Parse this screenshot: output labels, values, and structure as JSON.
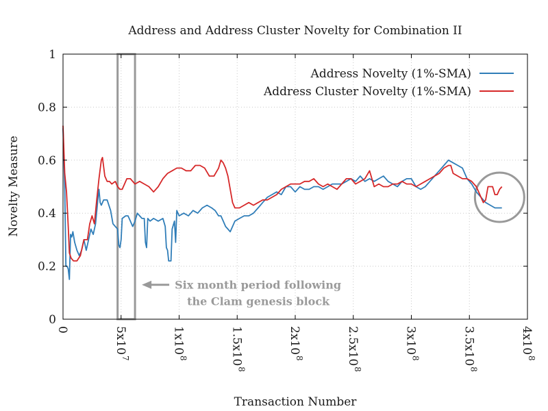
{
  "chart_data": {
    "type": "line",
    "title": "Address and Address Cluster Novelty for Combination II",
    "xlabel": "Transaction Number",
    "ylabel": "Novelty Measure",
    "xlim": [
      0,
      400000000
    ],
    "ylim": [
      0,
      1
    ],
    "x_ticks": [
      {
        "value": 0,
        "label": "0",
        "sup": ""
      },
      {
        "value": 50000000,
        "label": "5x10",
        "sup": "7"
      },
      {
        "value": 100000000,
        "label": "1x10",
        "sup": "8"
      },
      {
        "value": 150000000,
        "label": "1.5x10",
        "sup": "8"
      },
      {
        "value": 200000000,
        "label": "2x10",
        "sup": "8"
      },
      {
        "value": 250000000,
        "label": "2.5x10",
        "sup": "8"
      },
      {
        "value": 300000000,
        "label": "3x10",
        "sup": "8"
      },
      {
        "value": 350000000,
        "label": "3.5x10",
        "sup": "8"
      },
      {
        "value": 400000000,
        "label": "4x10",
        "sup": "8"
      }
    ],
    "y_ticks": [
      {
        "value": 0,
        "label": "0"
      },
      {
        "value": 0.2,
        "label": "0.2"
      },
      {
        "value": 0.4,
        "label": "0.4"
      },
      {
        "value": 0.6,
        "label": "0.6"
      },
      {
        "value": 0.8,
        "label": "0.8"
      },
      {
        "value": 1,
        "label": "1"
      }
    ],
    "grid": true,
    "legend_position": "top-right",
    "series": [
      {
        "name": "Address Novelty (1%-SMA)",
        "color": "#2f7db8",
        "points": [
          [
            0,
            0.72
          ],
          [
            1500000,
            0.5
          ],
          [
            2500000,
            0.2
          ],
          [
            3500000,
            0.2
          ],
          [
            4500000,
            0.19
          ],
          [
            5500000,
            0.15
          ],
          [
            6500000,
            0.32
          ],
          [
            7500000,
            0.31
          ],
          [
            8500000,
            0.33
          ],
          [
            10000000,
            0.29
          ],
          [
            12000000,
            0.26
          ],
          [
            14000000,
            0.24
          ],
          [
            16000000,
            0.26
          ],
          [
            18000000,
            0.3
          ],
          [
            20000000,
            0.26
          ],
          [
            22000000,
            0.3
          ],
          [
            24000000,
            0.34
          ],
          [
            26000000,
            0.32
          ],
          [
            28000000,
            0.36
          ],
          [
            30000000,
            0.45
          ],
          [
            31000000,
            0.49
          ],
          [
            32000000,
            0.44
          ],
          [
            33000000,
            0.43
          ],
          [
            35000000,
            0.45
          ],
          [
            38000000,
            0.45
          ],
          [
            41000000,
            0.41
          ],
          [
            43000000,
            0.36
          ],
          [
            45000000,
            0.35
          ],
          [
            47000000,
            0.34
          ],
          [
            48000000,
            0.28
          ],
          [
            49000000,
            0.27
          ],
          [
            50000000,
            0.3
          ],
          [
            51000000,
            0.38
          ],
          [
            54000000,
            0.39
          ],
          [
            56000000,
            0.39
          ],
          [
            58000000,
            0.37
          ],
          [
            60000000,
            0.35
          ],
          [
            62000000,
            0.37
          ],
          [
            64000000,
            0.4
          ],
          [
            66000000,
            0.39
          ],
          [
            68000000,
            0.38
          ],
          [
            70000000,
            0.38
          ],
          [
            71000000,
            0.29
          ],
          [
            72000000,
            0.27
          ],
          [
            73000000,
            0.38
          ],
          [
            75000000,
            0.37
          ],
          [
            78000000,
            0.38
          ],
          [
            82000000,
            0.37
          ],
          [
            86000000,
            0.38
          ],
          [
            88000000,
            0.35
          ],
          [
            89000000,
            0.27
          ],
          [
            90000000,
            0.26
          ],
          [
            91000000,
            0.22
          ],
          [
            93000000,
            0.22
          ],
          [
            94000000,
            0.34
          ],
          [
            96000000,
            0.37
          ],
          [
            97000000,
            0.29
          ],
          [
            98000000,
            0.41
          ],
          [
            100000000,
            0.39
          ],
          [
            104000000,
            0.4
          ],
          [
            108000000,
            0.39
          ],
          [
            112000000,
            0.41
          ],
          [
            116000000,
            0.4
          ],
          [
            120000000,
            0.42
          ],
          [
            124000000,
            0.43
          ],
          [
            128000000,
            0.42
          ],
          [
            131000000,
            0.41
          ],
          [
            134000000,
            0.39
          ],
          [
            136000000,
            0.39
          ],
          [
            138000000,
            0.37
          ],
          [
            140000000,
            0.35
          ],
          [
            142000000,
            0.34
          ],
          [
            144000000,
            0.33
          ],
          [
            146000000,
            0.35
          ],
          [
            148000000,
            0.37
          ],
          [
            152000000,
            0.38
          ],
          [
            156000000,
            0.39
          ],
          [
            160000000,
            0.39
          ],
          [
            164000000,
            0.4
          ],
          [
            168000000,
            0.42
          ],
          [
            172000000,
            0.44
          ],
          [
            176000000,
            0.46
          ],
          [
            180000000,
            0.47
          ],
          [
            184000000,
            0.48
          ],
          [
            188000000,
            0.47
          ],
          [
            192000000,
            0.5
          ],
          [
            196000000,
            0.5
          ],
          [
            200000000,
            0.48
          ],
          [
            204000000,
            0.5
          ],
          [
            208000000,
            0.49
          ],
          [
            212000000,
            0.49
          ],
          [
            216000000,
            0.5
          ],
          [
            220000000,
            0.5
          ],
          [
            224000000,
            0.49
          ],
          [
            228000000,
            0.5
          ],
          [
            232000000,
            0.51
          ],
          [
            236000000,
            0.51
          ],
          [
            240000000,
            0.51
          ],
          [
            244000000,
            0.52
          ],
          [
            248000000,
            0.53
          ],
          [
            252000000,
            0.52
          ],
          [
            256000000,
            0.54
          ],
          [
            260000000,
            0.52
          ],
          [
            264000000,
            0.53
          ],
          [
            268000000,
            0.52
          ],
          [
            272000000,
            0.53
          ],
          [
            276000000,
            0.54
          ],
          [
            280000000,
            0.52
          ],
          [
            284000000,
            0.51
          ],
          [
            288000000,
            0.5
          ],
          [
            292000000,
            0.52
          ],
          [
            296000000,
            0.53
          ],
          [
            300000000,
            0.53
          ],
          [
            304000000,
            0.5
          ],
          [
            308000000,
            0.49
          ],
          [
            312000000,
            0.5
          ],
          [
            316000000,
            0.52
          ],
          [
            320000000,
            0.54
          ],
          [
            324000000,
            0.56
          ],
          [
            328000000,
            0.58
          ],
          [
            332000000,
            0.6
          ],
          [
            336000000,
            0.59
          ],
          [
            340000000,
            0.58
          ],
          [
            344000000,
            0.57
          ],
          [
            348000000,
            0.53
          ],
          [
            352000000,
            0.51
          ],
          [
            356000000,
            0.48
          ],
          [
            360000000,
            0.46
          ],
          [
            364000000,
            0.44
          ],
          [
            368000000,
            0.43
          ],
          [
            372000000,
            0.42
          ],
          [
            376000000,
            0.42
          ],
          [
            378000000,
            0.42
          ]
        ]
      },
      {
        "name": "Address Cluster Novelty (1%-SMA)",
        "color": "#d62728",
        "points": [
          [
            0,
            0.73
          ],
          [
            1500000,
            0.55
          ],
          [
            3000000,
            0.48
          ],
          [
            4500000,
            0.35
          ],
          [
            5500000,
            0.25
          ],
          [
            7000000,
            0.23
          ],
          [
            9000000,
            0.22
          ],
          [
            12000000,
            0.22
          ],
          [
            15000000,
            0.24
          ],
          [
            18000000,
            0.3
          ],
          [
            21000000,
            0.3
          ],
          [
            23000000,
            0.36
          ],
          [
            25000000,
            0.39
          ],
          [
            27000000,
            0.36
          ],
          [
            29000000,
            0.45
          ],
          [
            31000000,
            0.53
          ],
          [
            33000000,
            0.6
          ],
          [
            34000000,
            0.61
          ],
          [
            36000000,
            0.54
          ],
          [
            38000000,
            0.52
          ],
          [
            40000000,
            0.52
          ],
          [
            42000000,
            0.51
          ],
          [
            45000000,
            0.52
          ],
          [
            47000000,
            0.5
          ],
          [
            49000000,
            0.49
          ],
          [
            51000000,
            0.49
          ],
          [
            53000000,
            0.51
          ],
          [
            55000000,
            0.53
          ],
          [
            58000000,
            0.53
          ],
          [
            62000000,
            0.51
          ],
          [
            66000000,
            0.52
          ],
          [
            70000000,
            0.51
          ],
          [
            74000000,
            0.5
          ],
          [
            78000000,
            0.48
          ],
          [
            82000000,
            0.5
          ],
          [
            86000000,
            0.53
          ],
          [
            90000000,
            0.55
          ],
          [
            94000000,
            0.56
          ],
          [
            98000000,
            0.57
          ],
          [
            102000000,
            0.57
          ],
          [
            106000000,
            0.56
          ],
          [
            110000000,
            0.56
          ],
          [
            114000000,
            0.58
          ],
          [
            118000000,
            0.58
          ],
          [
            122000000,
            0.57
          ],
          [
            126000000,
            0.54
          ],
          [
            130000000,
            0.54
          ],
          [
            134000000,
            0.57
          ],
          [
            136000000,
            0.6
          ],
          [
            138000000,
            0.59
          ],
          [
            140000000,
            0.57
          ],
          [
            142000000,
            0.54
          ],
          [
            144000000,
            0.49
          ],
          [
            146000000,
            0.44
          ],
          [
            148000000,
            0.42
          ],
          [
            152000000,
            0.42
          ],
          [
            156000000,
            0.43
          ],
          [
            160000000,
            0.44
          ],
          [
            164000000,
            0.43
          ],
          [
            168000000,
            0.44
          ],
          [
            172000000,
            0.45
          ],
          [
            176000000,
            0.45
          ],
          [
            180000000,
            0.46
          ],
          [
            184000000,
            0.47
          ],
          [
            188000000,
            0.49
          ],
          [
            192000000,
            0.5
          ],
          [
            196000000,
            0.51
          ],
          [
            200000000,
            0.51
          ],
          [
            204000000,
            0.51
          ],
          [
            208000000,
            0.52
          ],
          [
            212000000,
            0.52
          ],
          [
            216000000,
            0.53
          ],
          [
            220000000,
            0.51
          ],
          [
            224000000,
            0.5
          ],
          [
            228000000,
            0.51
          ],
          [
            232000000,
            0.5
          ],
          [
            236000000,
            0.49
          ],
          [
            240000000,
            0.51
          ],
          [
            244000000,
            0.53
          ],
          [
            248000000,
            0.53
          ],
          [
            252000000,
            0.51
          ],
          [
            256000000,
            0.52
          ],
          [
            260000000,
            0.53
          ],
          [
            264000000,
            0.56
          ],
          [
            268000000,
            0.5
          ],
          [
            272000000,
            0.51
          ],
          [
            276000000,
            0.5
          ],
          [
            280000000,
            0.5
          ],
          [
            284000000,
            0.51
          ],
          [
            288000000,
            0.51
          ],
          [
            292000000,
            0.52
          ],
          [
            296000000,
            0.51
          ],
          [
            300000000,
            0.51
          ],
          [
            304000000,
            0.5
          ],
          [
            308000000,
            0.51
          ],
          [
            312000000,
            0.52
          ],
          [
            316000000,
            0.53
          ],
          [
            320000000,
            0.54
          ],
          [
            324000000,
            0.55
          ],
          [
            328000000,
            0.57
          ],
          [
            332000000,
            0.58
          ],
          [
            334000000,
            0.58
          ],
          [
            336000000,
            0.55
          ],
          [
            340000000,
            0.54
          ],
          [
            344000000,
            0.53
          ],
          [
            348000000,
            0.53
          ],
          [
            352000000,
            0.52
          ],
          [
            356000000,
            0.5
          ],
          [
            360000000,
            0.46
          ],
          [
            362000000,
            0.44
          ],
          [
            364000000,
            0.45
          ],
          [
            366000000,
            0.5
          ],
          [
            370000000,
            0.5
          ],
          [
            372000000,
            0.47
          ],
          [
            374000000,
            0.47
          ],
          [
            376000000,
            0.49
          ],
          [
            378000000,
            0.5
          ]
        ]
      }
    ],
    "annotation": {
      "line1": "Six month period following",
      "line2": "the Clam genesis block",
      "period_x_start": 47000000,
      "period_x_end": 62000000,
      "highlight_center": [
        376000000,
        0.46
      ],
      "highlight_color": "#999999"
    }
  }
}
